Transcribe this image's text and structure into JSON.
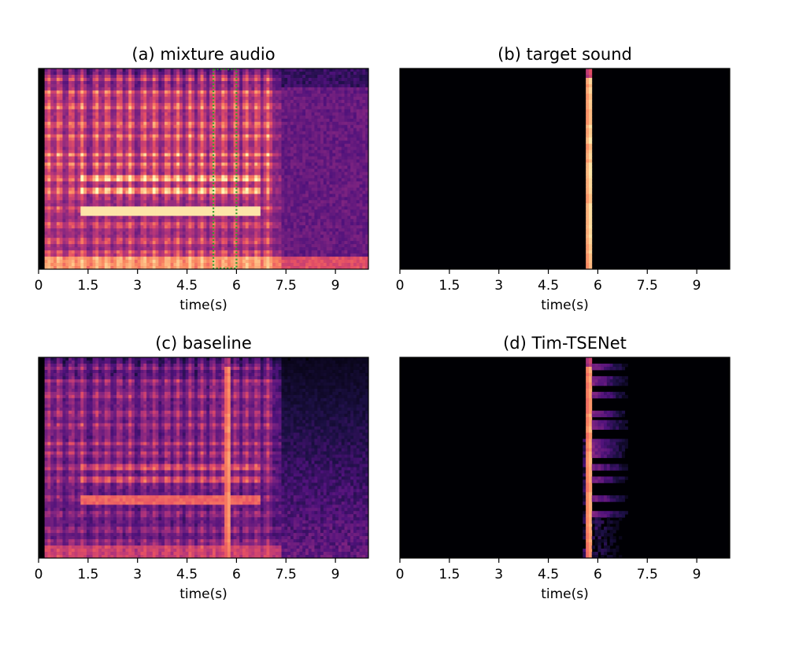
{
  "chart_data": [
    {
      "type": "heatmap",
      "subtype": "spectrogram",
      "title": "(a) mixture audio",
      "xlabel": "time(s)",
      "ylabel": "",
      "xlim": [
        0,
        10
      ],
      "xticks": [
        0,
        1.5,
        3,
        4.5,
        6,
        7.5,
        9
      ],
      "xtick_labels": [
        "0",
        "1.5",
        "3",
        "4.5",
        "6",
        "7.5",
        "9"
      ],
      "colormap": "magma",
      "content": "mixture",
      "highlight_region": {
        "x_start": 5.3,
        "x_end": 6.0,
        "color": "#2ca02c",
        "style": "dotted"
      }
    },
    {
      "type": "heatmap",
      "subtype": "spectrogram",
      "title": "(b) target sound",
      "xlabel": "time(s)",
      "ylabel": "",
      "xlim": [
        0,
        10
      ],
      "xticks": [
        0,
        1.5,
        3,
        4.5,
        6,
        7.5,
        9
      ],
      "xtick_labels": [
        "0",
        "1.5",
        "3",
        "4.5",
        "6",
        "7.5",
        "9"
      ],
      "colormap": "magma",
      "content": "target",
      "target_time": 5.75
    },
    {
      "type": "heatmap",
      "subtype": "spectrogram",
      "title": "(c) baseline",
      "xlabel": "time(s)",
      "ylabel": "",
      "xlim": [
        0,
        10
      ],
      "xticks": [
        0,
        1.5,
        3,
        4.5,
        6,
        7.5,
        9
      ],
      "xtick_labels": [
        "0",
        "1.5",
        "3",
        "4.5",
        "6",
        "7.5",
        "9"
      ],
      "colormap": "magma",
      "content": "baseline",
      "target_time": 5.75
    },
    {
      "type": "heatmap",
      "subtype": "spectrogram",
      "title": "(d) Tim-TSENet",
      "xlabel": "time(s)",
      "ylabel": "",
      "xlim": [
        0,
        10
      ],
      "xticks": [
        0,
        1.5,
        3,
        4.5,
        6,
        7.5,
        9
      ],
      "xtick_labels": [
        "0",
        "1.5",
        "3",
        "4.5",
        "6",
        "7.5",
        "9"
      ],
      "colormap": "magma",
      "content": "proposed",
      "target_time": 5.75
    }
  ],
  "colors": {
    "background": "#000004",
    "highlight": "#2ca02c"
  }
}
